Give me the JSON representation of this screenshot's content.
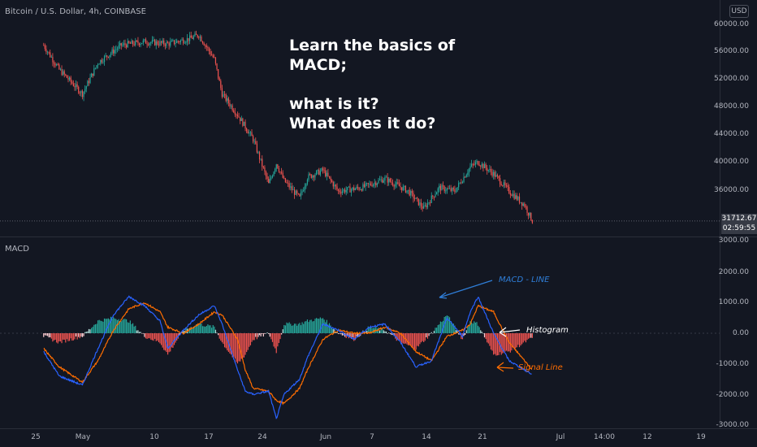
{
  "symbol": {
    "title": "Bitcoin / U.S. Dollar, 4h, COINBASE",
    "currency": "USD"
  },
  "lesson_text": "Learn the basics of\nMACD;\n\nwhat is it?\nWhat does it do?",
  "price_axis": {
    "labels": [
      "60000.00",
      "56000.00",
      "52000.00",
      "48000.00",
      "44000.00",
      "40000.00",
      "36000.00"
    ],
    "current_price": "31712.67",
    "countdown": "02:59:55"
  },
  "indicator": {
    "name": "MACD",
    "axis_labels": [
      "3000.00",
      "2000.00",
      "1000.00",
      "0.00",
      "-1000.00",
      "-2000.00",
      "-3000.00"
    ]
  },
  "time_axis": {
    "labels": [
      "25",
      "May",
      "10",
      "17",
      "24",
      "Jun",
      "7",
      "14",
      "21",
      "Jul",
      "14:00",
      "12",
      "19"
    ]
  },
  "annotations": {
    "macd_line": "MACD - LINE",
    "histogram": "Histogram",
    "signal_line": "Signal Line"
  },
  "colors": {
    "background": "#131722",
    "up": "#26a69a",
    "down": "#ef5350",
    "macd": "#2962ff",
    "signal": "#ff6d00",
    "annotation_macd": "#2f7ed8",
    "annotation_hist": "#ffffff",
    "annotation_signal": "#ff6d00"
  },
  "chart_data": [
    {
      "type": "candlestick",
      "title": "Bitcoin / U.S. Dollar, 4h, COINBASE",
      "x_range": [
        "Apr 20",
        "Jun 22"
      ],
      "ylim": [
        30000,
        62000
      ],
      "approx_close_path": [
        {
          "x": "Apr 20",
          "y": 57000
        },
        {
          "x": "Apr 22",
          "y": 53500
        },
        {
          "x": "Apr 25",
          "y": 50000
        },
        {
          "x": "Apr 27",
          "y": 54500
        },
        {
          "x": "Apr 30",
          "y": 57000
        },
        {
          "x": "May 3",
          "y": 57500
        },
        {
          "x": "May 6",
          "y": 57200
        },
        {
          "x": "May 9",
          "y": 58000
        },
        {
          "x": "May 10",
          "y": 58500
        },
        {
          "x": "May 12",
          "y": 55000
        },
        {
          "x": "May 13",
          "y": 50000
        },
        {
          "x": "May 15",
          "y": 47000
        },
        {
          "x": "May 17",
          "y": 43500
        },
        {
          "x": "May 19",
          "y": 37000
        },
        {
          "x": "May 20",
          "y": 40000
        },
        {
          "x": "May 21",
          "y": 37500
        },
        {
          "x": "May 23",
          "y": 35000
        },
        {
          "x": "May 24",
          "y": 38000
        },
        {
          "x": "May 26",
          "y": 39000
        },
        {
          "x": "May 28",
          "y": 36000
        },
        {
          "x": "May 31",
          "y": 36500
        },
        {
          "x": "Jun 3",
          "y": 37800
        },
        {
          "x": "Jun 6",
          "y": 36000
        },
        {
          "x": "Jun 8",
          "y": 33500
        },
        {
          "x": "Jun 10",
          "y": 36500
        },
        {
          "x": "Jun 12",
          "y": 36000
        },
        {
          "x": "Jun 14",
          "y": 39500
        },
        {
          "x": "Jun 15",
          "y": 40200
        },
        {
          "x": "Jun 17",
          "y": 38500
        },
        {
          "x": "Jun 19",
          "y": 36000
        },
        {
          "x": "Jun 21",
          "y": 34000
        },
        {
          "x": "Jun 22",
          "y": 31712.67
        }
      ],
      "current_price": 31712.67
    },
    {
      "type": "line",
      "title": "MACD",
      "ylim": [
        -3000,
        3000
      ],
      "series": [
        {
          "name": "MACD",
          "values": [
            {
              "x": "Apr 20",
              "y": -600
            },
            {
              "x": "Apr 22",
              "y": -1400
            },
            {
              "x": "Apr 25",
              "y": -1700
            },
            {
              "x": "Apr 27",
              "y": -500
            },
            {
              "x": "Apr 29",
              "y": 600
            },
            {
              "x": "May 1",
              "y": 1200
            },
            {
              "x": "May 3",
              "y": 900
            },
            {
              "x": "May 5",
              "y": 400
            },
            {
              "x": "May 6",
              "y": -500
            },
            {
              "x": "May 8",
              "y": 100
            },
            {
              "x": "May 10",
              "y": 600
            },
            {
              "x": "May 12",
              "y": 900
            },
            {
              "x": "May 13",
              "y": 300
            },
            {
              "x": "May 15",
              "y": -1200
            },
            {
              "x": "May 16",
              "y": -1900
            },
            {
              "x": "May 17",
              "y": -2000
            },
            {
              "x": "May 19",
              "y": -1900
            },
            {
              "x": "May 20",
              "y": -2800
            },
            {
              "x": "May 21",
              "y": -2000
            },
            {
              "x": "May 23",
              "y": -1500
            },
            {
              "x": "May 24",
              "y": -800
            },
            {
              "x": "May 26",
              "y": 300
            },
            {
              "x": "May 28",
              "y": 100
            },
            {
              "x": "May 30",
              "y": -200
            },
            {
              "x": "Jun 1",
              "y": 200
            },
            {
              "x": "Jun 3",
              "y": 300
            },
            {
              "x": "Jun 5",
              "y": -300
            },
            {
              "x": "Jun 7",
              "y": -1100
            },
            {
              "x": "Jun 9",
              "y": -900
            },
            {
              "x": "Jun 11",
              "y": 500
            },
            {
              "x": "Jun 13",
              "y": -100
            },
            {
              "x": "Jun 14",
              "y": 700
            },
            {
              "x": "Jun 15",
              "y": 1200
            },
            {
              "x": "Jun 17",
              "y": 0
            },
            {
              "x": "Jun 19",
              "y": -900
            },
            {
              "x": "Jun 21",
              "y": -1200
            },
            {
              "x": "Jun 22",
              "y": -1350
            }
          ]
        },
        {
          "name": "Signal",
          "values": [
            {
              "x": "Apr 20",
              "y": -500
            },
            {
              "x": "Apr 22",
              "y": -1100
            },
            {
              "x": "Apr 25",
              "y": -1600
            },
            {
              "x": "Apr 27",
              "y": -900
            },
            {
              "x": "Apr 29",
              "y": 100
            },
            {
              "x": "May 1",
              "y": 800
            },
            {
              "x": "May 3",
              "y": 1000
            },
            {
              "x": "May 5",
              "y": 700
            },
            {
              "x": "May 6",
              "y": 200
            },
            {
              "x": "May 8",
              "y": 0
            },
            {
              "x": "May 10",
              "y": 300
            },
            {
              "x": "May 12",
              "y": 700
            },
            {
              "x": "May 13",
              "y": 600
            },
            {
              "x": "May 15",
              "y": -200
            },
            {
              "x": "May 16",
              "y": -1200
            },
            {
              "x": "May 17",
              "y": -1800
            },
            {
              "x": "May 19",
              "y": -1900
            },
            {
              "x": "May 20",
              "y": -2200
            },
            {
              "x": "May 21",
              "y": -2300
            },
            {
              "x": "May 23",
              "y": -1800
            },
            {
              "x": "May 24",
              "y": -1200
            },
            {
              "x": "May 26",
              "y": -200
            },
            {
              "x": "May 28",
              "y": 100
            },
            {
              "x": "May 30",
              "y": 0
            },
            {
              "x": "Jun 1",
              "y": 0
            },
            {
              "x": "Jun 3",
              "y": 200
            },
            {
              "x": "Jun 5",
              "y": 0
            },
            {
              "x": "Jun 7",
              "y": -600
            },
            {
              "x": "Jun 9",
              "y": -900
            },
            {
              "x": "Jun 11",
              "y": -100
            },
            {
              "x": "Jun 13",
              "y": 100
            },
            {
              "x": "Jun 14",
              "y": 300
            },
            {
              "x": "Jun 15",
              "y": 900
            },
            {
              "x": "Jun 17",
              "y": 700
            },
            {
              "x": "Jun 19",
              "y": -300
            },
            {
              "x": "Jun 21",
              "y": -900
            },
            {
              "x": "Jun 22",
              "y": -1200
            }
          ]
        }
      ],
      "histogram": "MACD minus Signal (bars, green above 0, red below 0)"
    }
  ]
}
